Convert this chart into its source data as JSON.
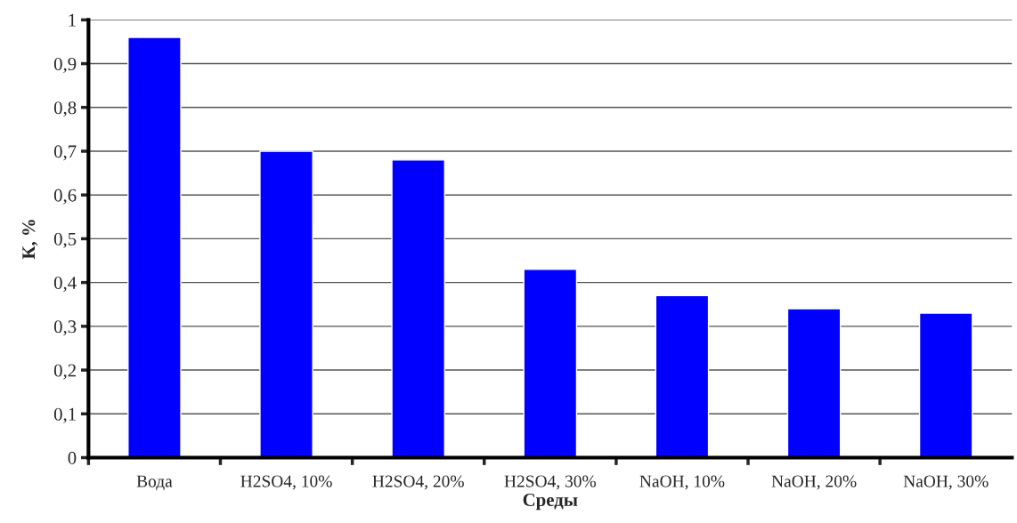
{
  "chart_data": {
    "type": "bar",
    "xlabel": "Среды",
    "ylabel": "К, %",
    "categories": [
      "Вода",
      "H2SO4, 10%",
      "H2SO4, 20%",
      "H2SO4, 30%",
      "NaOH, 10%",
      "NaOH, 20%",
      "NaOH, 30%"
    ],
    "values": [
      0.96,
      0.7,
      0.68,
      0.43,
      0.37,
      0.34,
      0.33
    ],
    "color": "#0000ff",
    "ylim": [
      0,
      1
    ],
    "yticks": [
      {
        "value": 0,
        "label": "0"
      },
      {
        "value": 0.1,
        "label": "0,1"
      },
      {
        "value": 0.2,
        "label": "0,2"
      },
      {
        "value": 0.3,
        "label": "0,3"
      },
      {
        "value": 0.4,
        "label": "0,4"
      },
      {
        "value": 0.5,
        "label": "0,5"
      },
      {
        "value": 0.6,
        "label": "0,6"
      },
      {
        "value": 0.7,
        "label": "0,7"
      },
      {
        "value": 0.8,
        "label": "0,8"
      },
      {
        "value": 0.9,
        "label": "0,9"
      },
      {
        "value": 1,
        "label": "1"
      }
    ],
    "grid": "y"
  }
}
